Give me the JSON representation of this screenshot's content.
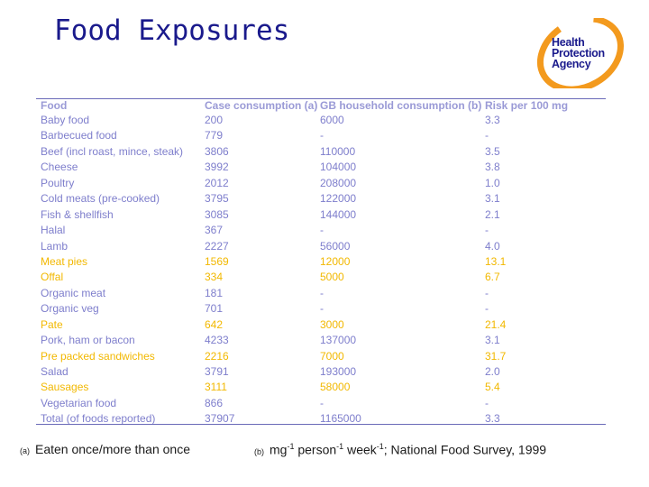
{
  "title": "Food Exposures",
  "logo": {
    "line1": "Health",
    "line2": "Protection",
    "line3": "Agency"
  },
  "colors": {
    "title": "#1a1a8c",
    "row_text": "#7e7ecc",
    "highlight": "#f2b800",
    "logo_orange": "#f39a1e"
  },
  "table": {
    "headers": [
      "Food",
      "Case consumption (a)",
      "GB household consumption (b)",
      "Risk per 100 mg"
    ],
    "rows": [
      {
        "food": "Baby food",
        "case": "200",
        "gb": "6000",
        "risk": "3.3",
        "hl": false
      },
      {
        "food": "Barbecued food",
        "case": "779",
        "gb": "-",
        "risk": "-",
        "hl": false
      },
      {
        "food": "Beef (incl roast, mince, steak)",
        "case": "3806",
        "gb": "110000",
        "risk": "3.5",
        "hl": false
      },
      {
        "food": "Cheese",
        "case": "3992",
        "gb": "104000",
        "risk": "3.8",
        "hl": false
      },
      {
        "food": "Poultry",
        "case": "2012",
        "gb": "208000",
        "risk": "1.0",
        "hl": false
      },
      {
        "food": "Cold meats (pre-cooked)",
        "case": "3795",
        "gb": "122000",
        "risk": "3.1",
        "hl": false
      },
      {
        "food": "Fish & shellfish",
        "case": "3085",
        "gb": "144000",
        "risk": "2.1",
        "hl": false
      },
      {
        "food": "Halal",
        "case": "367",
        "gb": "-",
        "risk": "-",
        "hl": false
      },
      {
        "food": "Lamb",
        "case": "2227",
        "gb": "56000",
        "risk": "4.0",
        "hl": false
      },
      {
        "food": "Meat pies",
        "case": "1569",
        "gb": "12000",
        "risk": "13.1",
        "hl": true
      },
      {
        "food": "Offal",
        "case": "334",
        "gb": "5000",
        "risk": "6.7",
        "hl": true
      },
      {
        "food": "Organic meat",
        "case": "181",
        "gb": "-",
        "risk": "-",
        "hl": false
      },
      {
        "food": "Organic veg",
        "case": "701",
        "gb": "-",
        "risk": "-",
        "hl": false
      },
      {
        "food": "Pate",
        "case": "642",
        "gb": "3000",
        "risk": "21.4",
        "hl": true
      },
      {
        "food": "Pork, ham or bacon",
        "case": "4233",
        "gb": "137000",
        "risk": "3.1",
        "hl": false
      },
      {
        "food": "Pre packed sandwiches",
        "case": "2216",
        "gb": "7000",
        "risk": "31.7",
        "hl": true
      },
      {
        "food": "Salad",
        "case": "3791",
        "gb": "193000",
        "risk": "2.0",
        "hl": false
      },
      {
        "food": "Sausages",
        "case": "3111",
        "gb": "58000",
        "risk": "5.4",
        "hl": true
      },
      {
        "food": "Vegetarian food",
        "case": "866",
        "gb": "-",
        "risk": "-",
        "hl": false
      },
      {
        "food": "Total (of foods reported)",
        "case": "37907",
        "gb": "1165000",
        "risk": "3.3",
        "hl": false
      }
    ]
  },
  "footnotes": {
    "a_marker": "(a)",
    "a_text": "Eaten once/more than once",
    "b_marker": "(b)",
    "b_unit": "mg",
    "b_sup1": "-1",
    "b_person": " person",
    "b_sup2": "-1",
    "b_week": " week",
    "b_sup3": "-1",
    "b_rest": "; National Food Survey, 1999"
  }
}
